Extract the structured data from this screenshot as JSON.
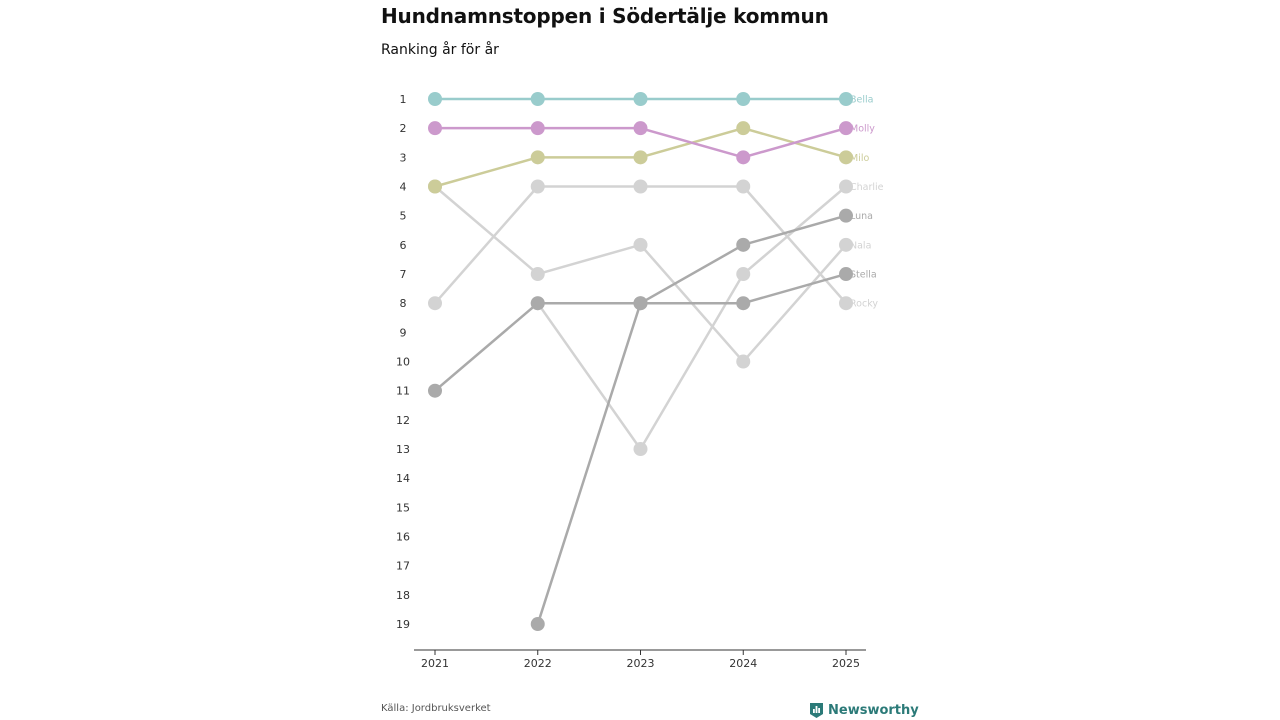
{
  "title": "Hundnamnstoppen i Södertälje kommun",
  "subtitle": "Ranking år för år",
  "source": "Källa: Jordbruksverket",
  "brand": {
    "name": "Newsworthy",
    "icon": "newsworthy-logo-icon",
    "color": "#2b7a78"
  },
  "chart_data": {
    "type": "line",
    "title": "Hundnamnstoppen i Södertälje kommun",
    "subtitle": "Ranking år för år",
    "xlabel": "",
    "ylabel": "",
    "categories": [
      "2021",
      "2022",
      "2023",
      "2024",
      "2025"
    ],
    "y_ticks": [
      1,
      2,
      3,
      4,
      5,
      6,
      7,
      8,
      9,
      10,
      11,
      12,
      13,
      14,
      15,
      16,
      17,
      18,
      19
    ],
    "ylim": [
      1,
      19
    ],
    "y_reversed": true,
    "grid": false,
    "legend": "direct labels at right end of lines",
    "series": [
      {
        "name": "Rocky",
        "values": [
          8,
          4,
          4,
          4,
          8
        ],
        "color": "#d3d3d3"
      },
      {
        "name": "Nala",
        "values": [
          4,
          7,
          6,
          10,
          6
        ],
        "color": "#d3d3d3"
      },
      {
        "name": "Charlie",
        "values": [
          null,
          8,
          13,
          7,
          4
        ],
        "color": "#d3d3d3"
      },
      {
        "name": "Stella",
        "values": [
          null,
          19,
          8,
          8,
          7
        ],
        "color": "#aaaaaa"
      },
      {
        "name": "Luna",
        "values": [
          11,
          8,
          8,
          6,
          5
        ],
        "color": "#aaaaaa"
      },
      {
        "name": "Milo",
        "values": [
          4,
          3,
          3,
          2,
          3
        ],
        "color": "#cccc99"
      },
      {
        "name": "Molly",
        "values": [
          2,
          2,
          2,
          3,
          2
        ],
        "color": "#cc99cc"
      },
      {
        "name": "Bella",
        "values": [
          1,
          1,
          1,
          1,
          1
        ],
        "color": "#99cccc"
      }
    ],
    "end_labels": [
      {
        "name": "Bella",
        "rank": 1,
        "color": "#99cccc"
      },
      {
        "name": "Molly",
        "rank": 2,
        "color": "#cc99cc"
      },
      {
        "name": "Milo",
        "rank": 3,
        "color": "#cccc99"
      },
      {
        "name": "Charlie",
        "rank": 4,
        "color": "#d3d3d3"
      },
      {
        "name": "Luna",
        "rank": 5,
        "color": "#aaaaaa"
      },
      {
        "name": "Nala",
        "rank": 6,
        "color": "#d3d3d3"
      },
      {
        "name": "Stella",
        "rank": 7,
        "color": "#aaaaaa"
      },
      {
        "name": "Rocky",
        "rank": 8,
        "color": "#d3d3d3"
      }
    ]
  }
}
